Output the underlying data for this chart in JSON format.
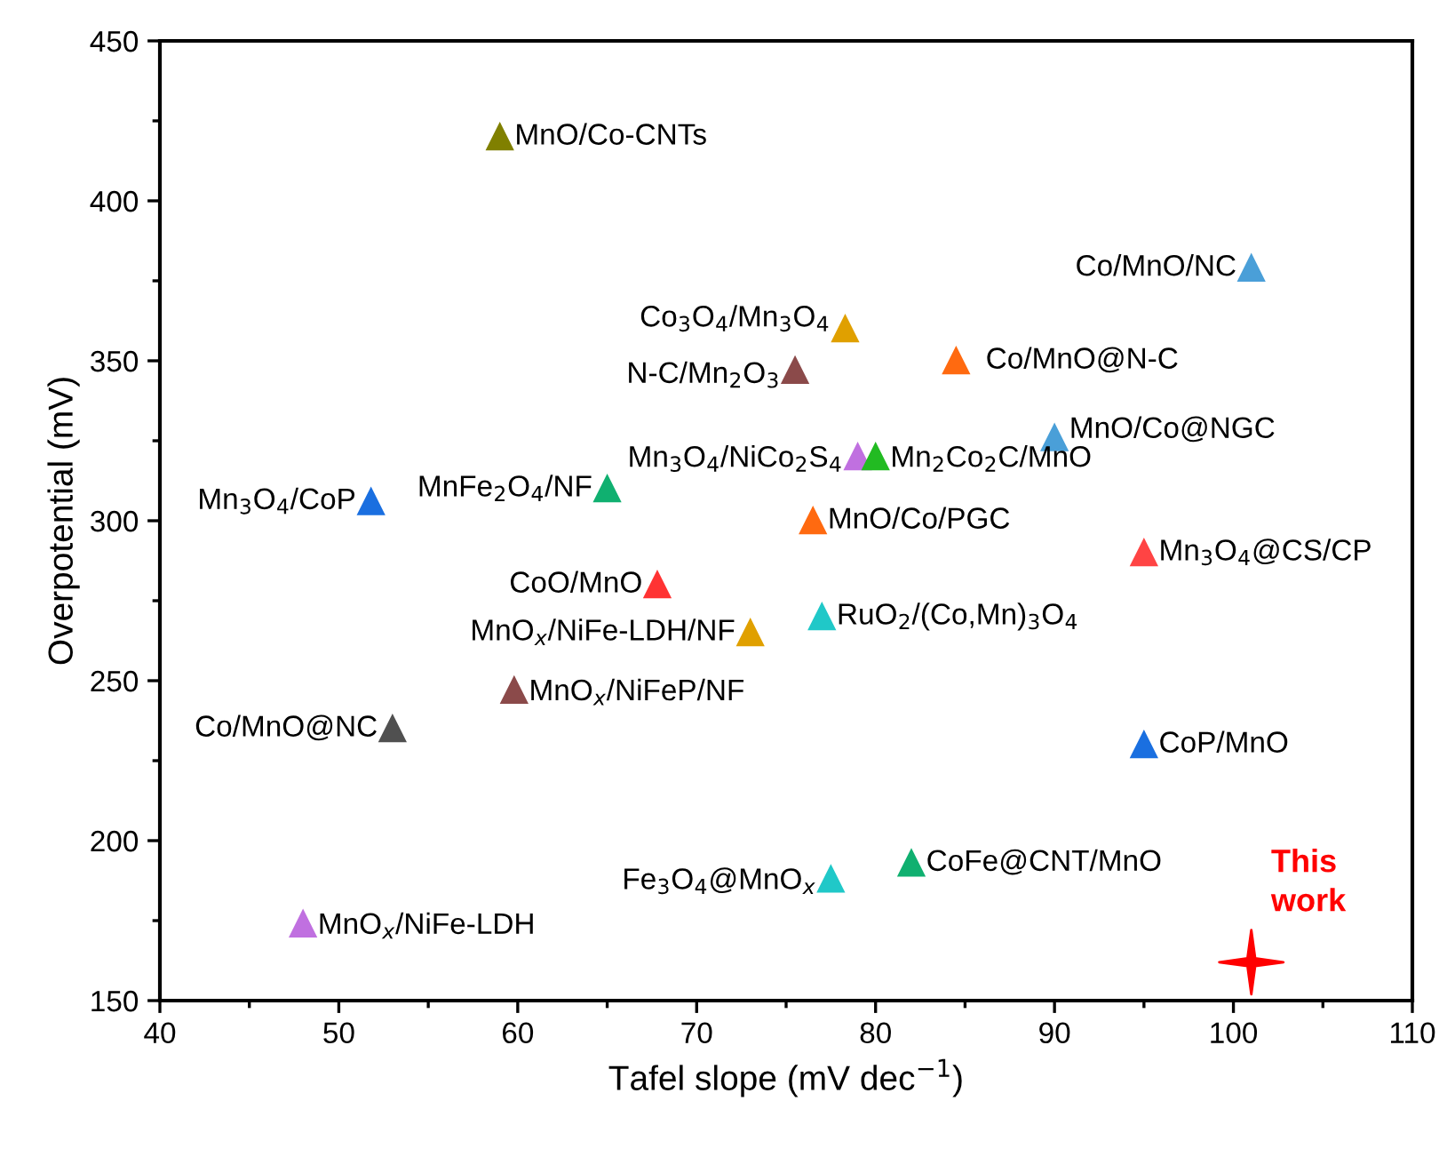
{
  "chart_data": {
    "type": "scatter",
    "xlabel": "Tafel slope (mV dec$^{−1}$)",
    "ylabel": "Overpotential (mV)",
    "xlim": [
      40,
      110
    ],
    "ylim": [
      150,
      450
    ],
    "xticks": [
      40,
      {
        "value": 45,
        "label": null
      },
      50,
      {
        "value": 55,
        "label": null
      },
      60,
      {
        "value": 65,
        "label": null
      },
      70,
      {
        "value": 75,
        "label": null
      },
      80,
      {
        "value": 85,
        "label": null
      },
      90,
      {
        "value": 95,
        "label": null
      },
      100,
      {
        "value": 105,
        "label": null
      },
      110
    ],
    "yticks": [
      150,
      {
        "value": 175,
        "label": null
      },
      200,
      {
        "value": 225,
        "label": null
      },
      250,
      {
        "value": 275,
        "label": null
      },
      300,
      {
        "value": 325,
        "label": null
      },
      350,
      {
        "value": 375,
        "label": null
      },
      400,
      {
        "value": 425,
        "label": null
      },
      450
    ],
    "grid": false,
    "legend": false,
    "marker": "triangle",
    "series": [
      {
        "name": "MnO/Co-CNTs",
        "color": "#808000",
        "x": [
          59
        ],
        "values": [
          420
        ]
      },
      {
        "name": "Co/MnO/NC",
        "color": "#4a9fd8",
        "x": [
          101
        ],
        "values": [
          379
        ]
      },
      {
        "name": "Co$_{3}$O$_{4}$/Mn$_{3}$O$_{4}$",
        "color": "#e0a000",
        "x": [
          78.3
        ],
        "values": [
          360
        ]
      },
      {
        "name": "Co/MnO@N-C",
        "color": "#ff6a10",
        "x": [
          84.5
        ],
        "values": [
          350
        ]
      },
      {
        "name": "N-C/Mn$_{2}$O$_{3}$",
        "color": "#8b4a4a",
        "x": [
          75.5
        ],
        "values": [
          347
        ]
      },
      {
        "name": "MnO/Co@NGC",
        "color": "#4a9fd8",
        "x": [
          90
        ],
        "values": [
          326
        ]
      },
      {
        "name": "Mn$_{3}$O$_{4}$/NiCo$_{2}$S$_{4}$",
        "color": "#c070e0",
        "x": [
          79
        ],
        "values": [
          320
        ]
      },
      {
        "name": "Mn$_{2}$Co$_{2}$C/MnO",
        "color": "#22bb22",
        "x": [
          80
        ],
        "values": [
          320
        ]
      },
      {
        "name": "Mn$_{3}$O$_{4}$/CoP",
        "color": "#1a6fe0",
        "x": [
          51.8
        ],
        "values": [
          306
        ]
      },
      {
        "name": "MnFe$_{2}$O$_{4}$/NF",
        "color": "#10b070",
        "x": [
          65
        ],
        "values": [
          310
        ]
      },
      {
        "name": "MnO/Co/PGC",
        "color": "#ff6a10",
        "x": [
          76.5
        ],
        "values": [
          300
        ]
      },
      {
        "name": "Mn$_{3}$O$_{4}$@CS/CP",
        "color": "#ff4444",
        "x": [
          95
        ],
        "values": [
          290
        ]
      },
      {
        "name": "CoO/MnO",
        "color": "#ff3333",
        "x": [
          67.8
        ],
        "values": [
          280
        ]
      },
      {
        "name": "RuO$_{2}$/(Co,Mn)$_{3}$O$_{4}$",
        "color": "#20c8c8",
        "x": [
          77
        ],
        "values": [
          270
        ]
      },
      {
        "name": "MnO$_{x}$/NiFe-LDH/NF",
        "color": "#e0a000",
        "x": [
          73
        ],
        "values": [
          265
        ]
      },
      {
        "name": "MnO$_{x}$/NiFeP/NF",
        "color": "#8b4a4a",
        "x": [
          59.8
        ],
        "values": [
          247
        ]
      },
      {
        "name": "Co/MnO@NC",
        "color": "#505050",
        "x": [
          53
        ],
        "values": [
          235
        ]
      },
      {
        "name": "CoP/MnO",
        "color": "#1a6fe0",
        "x": [
          95
        ],
        "values": [
          230
        ]
      },
      {
        "name": "CoFe@CNT/MnO",
        "color": "#10b070",
        "x": [
          82
        ],
        "values": [
          193
        ]
      },
      {
        "name": "Fe$_{3}$O$_{4}$@MnO$_{x}$",
        "color": "#20c8c8",
        "x": [
          77.5
        ],
        "values": [
          188
        ]
      },
      {
        "name": "MnO$_{x}$/NiFe-LDH",
        "color": "#c070e0",
        "x": [
          48
        ],
        "values": [
          174
        ]
      },
      {
        "name": "This work",
        "color": "#ff0000",
        "x": [
          101
        ],
        "values": [
          162
        ],
        "marker": "star"
      }
    ]
  }
}
